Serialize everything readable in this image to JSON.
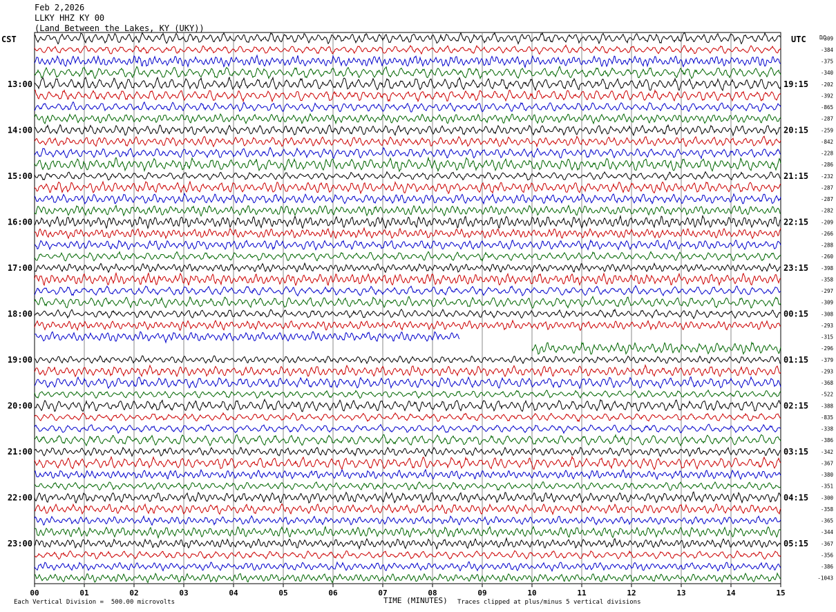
{
  "header": {
    "date": "Feb 2,2026",
    "station": "LLKY HHZ KY 00",
    "location": "(Land Between the Lakes, KY (UKY))"
  },
  "left_tz": "CST",
  "right_tz": "UTC",
  "dc_label": "DC",
  "footer": {
    "scale_note": "Each Vertical Division =  500.00 microvolts",
    "xlabel": "TIME (MINUTES)",
    "clip_note": "Traces clipped at plus/minus 5 vertical divisions"
  },
  "chart_data": {
    "type": "line",
    "x_ticks": [
      "00",
      "01",
      "02",
      "03",
      "04",
      "05",
      "06",
      "07",
      "08",
      "09",
      "10",
      "11",
      "12",
      "13",
      "14",
      "15"
    ],
    "xlim": [
      0,
      15
    ],
    "left_hour_labels": [
      "13:00",
      "14:00",
      "15:00",
      "16:00",
      "17:00",
      "18:00",
      "19:00",
      "20:00",
      "21:00",
      "22:00",
      "23:00"
    ],
    "right_hour_labels": [
      "19:15",
      "20:15",
      "21:15",
      "22:15",
      "23:15",
      "00:15",
      "01:15",
      "02:15",
      "03:15",
      "04:15",
      "05:15"
    ],
    "trace_colors": [
      "#000000",
      "#cc0000",
      "#0000cc",
      "#006600"
    ],
    "trace_count": 48,
    "grid_x": true,
    "dc_offsets": [
      "-309",
      "-384",
      "-375",
      "-340",
      "-202",
      "-392",
      "-865",
      "-287",
      "-259",
      "-842",
      "-228",
      "-286",
      "-232",
      "-287",
      "-287",
      "-282",
      "-209",
      "-266",
      "-288",
      "-260",
      "-398",
      "-358",
      "-297",
      "-309",
      "-308",
      "-293",
      "-315",
      "-296",
      "-379",
      "-293",
      "-368",
      "-522",
      "-388",
      "-835",
      "-338",
      "-386",
      "-342",
      "-367",
      "-380",
      "-351",
      "-300",
      "-358",
      "-365",
      "-344",
      "-367",
      "-356",
      "-386",
      "-1043"
    ],
    "gaps": [
      {
        "trace": 26,
        "x_start": 8.55,
        "x_end": 15.0
      },
      {
        "trace": 27,
        "x_start": 0.0,
        "x_end": 10.0
      }
    ]
  }
}
